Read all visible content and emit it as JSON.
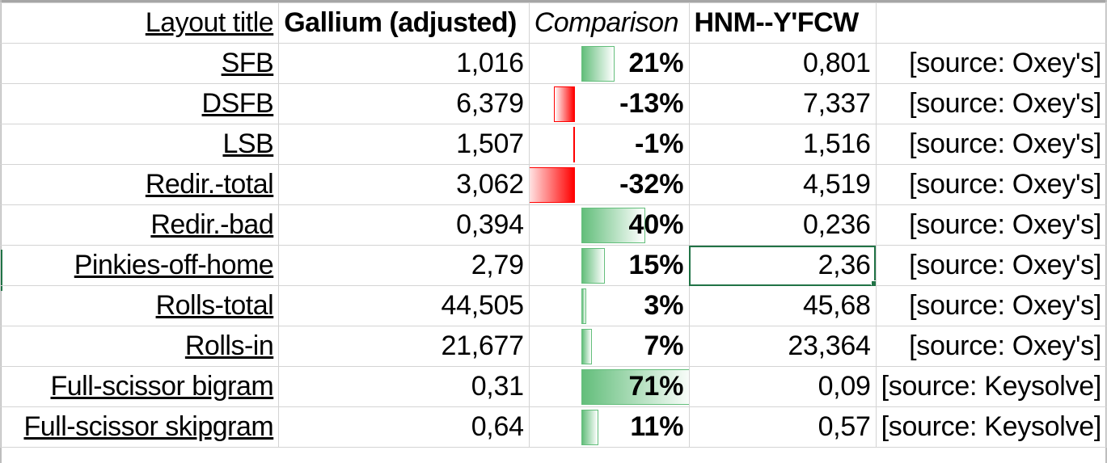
{
  "header": {
    "title": "Layout title",
    "gallium": "Gallium (adjusted)",
    "comparison": "Comparison",
    "other": "HNM--Y'FCW"
  },
  "rows": [
    {
      "metric": "SFB",
      "gallium": "1,016",
      "comparison": "21%",
      "comparison_value": 21,
      "other": "0,801",
      "source": "[source: Oxey's]"
    },
    {
      "metric": "DSFB",
      "gallium": "6,379",
      "comparison": "-13%",
      "comparison_value": -13,
      "other": "7,337",
      "source": "[source: Oxey's]"
    },
    {
      "metric": "LSB",
      "gallium": "1,507",
      "comparison": "-1%",
      "comparison_value": -1,
      "other": "1,516",
      "source": "[source: Oxey's]"
    },
    {
      "metric": "Redir.-total",
      "gallium": "3,062",
      "comparison": "-32%",
      "comparison_value": -32,
      "other": "4,519",
      "source": "[source: Oxey's]"
    },
    {
      "metric": "Redir.-bad",
      "gallium": "0,394",
      "comparison": "40%",
      "comparison_value": 40,
      "other": "0,236",
      "source": "[source: Oxey's]"
    },
    {
      "metric": "Pinkies-off-home",
      "gallium": "2,79",
      "comparison": "15%",
      "comparison_value": 15,
      "other": "2,36",
      "source": "[source: Oxey's]"
    },
    {
      "metric": "Rolls-total",
      "gallium": "44,505",
      "comparison": "3%",
      "comparison_value": 3,
      "other": "45,68",
      "source": "[source: Oxey's]"
    },
    {
      "metric": "Rolls-in",
      "gallium": "21,677",
      "comparison": "7%",
      "comparison_value": 7,
      "other": "23,364",
      "source": "[source: Oxey's]"
    },
    {
      "metric": "Full-scissor bigram",
      "gallium": "0,31",
      "comparison": "71%",
      "comparison_value": 71,
      "other": "0,09",
      "source": "[source: Keysolve]"
    },
    {
      "metric": "Full-scissor skipgram",
      "gallium": "0,64",
      "comparison": "11%",
      "comparison_value": 11,
      "other": "0,57",
      "source": "[source: Keysolve]"
    }
  ],
  "colors": {
    "positive_bar": "#63be7b",
    "negative_bar": "#ff0000",
    "selection": "#217346",
    "gridline": "#d4d4d4"
  }
}
